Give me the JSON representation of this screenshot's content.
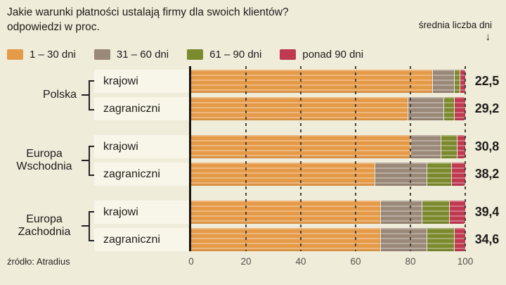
{
  "header": {
    "title_line1": "Jakie warunki płatności ustalają firmy dla swoich klientów?",
    "title_line2": "odpowiedzi w proc.",
    "right_label": "średnia liczba dni",
    "arrow_icon": "↓"
  },
  "legend": [
    {
      "label": "1 – 30 dni",
      "color": "#e59a48"
    },
    {
      "label": "31 – 60 dni",
      "color": "#9a8878"
    },
    {
      "label": "61 – 90 dni",
      "color": "#7c8a2e"
    },
    {
      "label": "ponad 90 dni",
      "color": "#bf3950"
    }
  ],
  "footer": {
    "source": "źródło: Atradius"
  },
  "chart_data": {
    "type": "bar",
    "stacked": true,
    "orientation": "horizontal",
    "unit": "proc.",
    "xlim": [
      0,
      100
    ],
    "x_ticks": [
      0,
      20,
      40,
      60,
      80,
      100
    ],
    "grid": "dashed-vertical",
    "legend_position": "top",
    "series_names": [
      "1 – 30 dni",
      "31 – 60 dni",
      "61 – 90 dni",
      "ponad 90 dni"
    ],
    "value_column_label": "średnia liczba dni",
    "groups": [
      {
        "label": "Polska",
        "rows": [
          {
            "label": "krajowi",
            "values": [
              88,
              8,
              2,
              2
            ],
            "avg_days": "22,5"
          },
          {
            "label": "zagraniczni",
            "values": [
              79,
              13,
              4,
              4
            ],
            "avg_days": "29,2"
          }
        ]
      },
      {
        "label": "Europa Wschodnia",
        "rows": [
          {
            "label": "krajowi",
            "values": [
              80,
              11,
              6,
              3
            ],
            "avg_days": "30,8"
          },
          {
            "label": "zagraniczni",
            "values": [
              67,
              19,
              9,
              5
            ],
            "avg_days": "38,2"
          }
        ]
      },
      {
        "label": "Europa Zachodnia",
        "rows": [
          {
            "label": "krajowi",
            "values": [
              69,
              15,
              10,
              6
            ],
            "avg_days": "39,4"
          },
          {
            "label": "zagraniczni",
            "values": [
              69,
              17,
              10,
              4
            ],
            "avg_days": "34,6"
          }
        ]
      }
    ]
  }
}
